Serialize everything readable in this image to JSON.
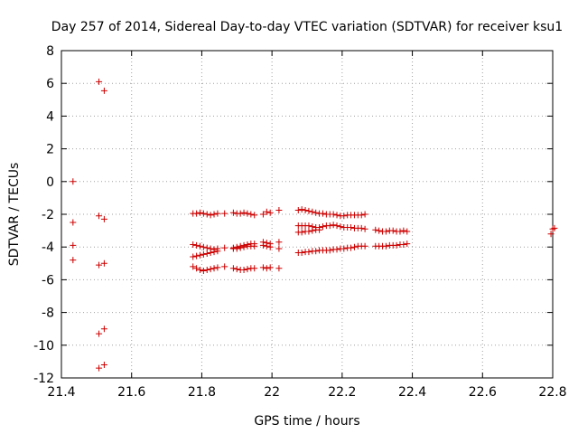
{
  "chart_data": {
    "type": "scatter",
    "title": "Day 257 of 2014, Sidereal Day-to-day VTEC variation (SDTVAR) for receiver ksu1",
    "xlabel": "GPS time / hours",
    "ylabel": "SDTVAR / TECUs",
    "xlim": [
      21.4,
      22.8
    ],
    "ylim": [
      -12,
      8
    ],
    "xticks": [
      21.4,
      21.6,
      21.8,
      22.0,
      22.2,
      22.4,
      22.6,
      22.8
    ],
    "xtick_labels": [
      "21.4",
      "21.6",
      "21.8",
      "22",
      "22.2",
      "22.4",
      "22.6",
      "22.8"
    ],
    "yticks": [
      -12,
      -10,
      -8,
      -6,
      -4,
      -2,
      0,
      2,
      4,
      6,
      8
    ],
    "ytick_labels": [
      "-12",
      "-10",
      "-8",
      "-6",
      "-4",
      "-2",
      "0",
      "2",
      "4",
      "6",
      "8"
    ],
    "grid": true,
    "marker": "+",
    "marker_color": "#cc0000",
    "series": [
      {
        "name": "SDTVAR",
        "points": [
          [
            21.433,
            0.0
          ],
          [
            21.433,
            -2.5
          ],
          [
            21.433,
            -3.9
          ],
          [
            21.433,
            -4.8
          ],
          [
            21.507,
            6.1
          ],
          [
            21.522,
            5.55
          ],
          [
            21.507,
            -2.1
          ],
          [
            21.522,
            -2.3
          ],
          [
            21.507,
            -5.1
          ],
          [
            21.522,
            -5.0
          ],
          [
            21.507,
            -9.3
          ],
          [
            21.522,
            -9.0
          ],
          [
            21.507,
            -11.4
          ],
          [
            21.522,
            -11.2
          ],
          [
            21.775,
            -1.95
          ],
          [
            21.785,
            -1.95
          ],
          [
            21.795,
            -1.9
          ],
          [
            21.805,
            -1.95
          ],
          [
            21.815,
            -2.0
          ],
          [
            21.825,
            -2.05
          ],
          [
            21.835,
            -2.0
          ],
          [
            21.845,
            -1.95
          ],
          [
            21.865,
            -1.95
          ],
          [
            21.89,
            -1.9
          ],
          [
            21.9,
            -1.95
          ],
          [
            21.91,
            -1.95
          ],
          [
            21.92,
            -1.9
          ],
          [
            21.93,
            -1.95
          ],
          [
            21.94,
            -2.0
          ],
          [
            21.95,
            -2.05
          ],
          [
            21.975,
            -2.0
          ],
          [
            21.985,
            -1.85
          ],
          [
            21.995,
            -1.9
          ],
          [
            22.02,
            -1.75
          ],
          [
            21.775,
            -3.85
          ],
          [
            21.785,
            -3.9
          ],
          [
            21.795,
            -3.95
          ],
          [
            21.805,
            -4.0
          ],
          [
            21.815,
            -4.05
          ],
          [
            21.825,
            -4.1
          ],
          [
            21.835,
            -4.15
          ],
          [
            21.845,
            -4.1
          ],
          [
            21.865,
            -4.05
          ],
          [
            21.89,
            -4.05
          ],
          [
            21.9,
            -4.0
          ],
          [
            21.91,
            -3.95
          ],
          [
            21.92,
            -3.9
          ],
          [
            21.93,
            -3.85
          ],
          [
            21.94,
            -3.8
          ],
          [
            21.95,
            -3.8
          ],
          [
            21.975,
            -3.7
          ],
          [
            21.985,
            -3.75
          ],
          [
            21.995,
            -3.8
          ],
          [
            22.02,
            -3.7
          ],
          [
            21.775,
            -4.6
          ],
          [
            21.785,
            -4.55
          ],
          [
            21.795,
            -4.5
          ],
          [
            21.805,
            -4.45
          ],
          [
            21.815,
            -4.4
          ],
          [
            21.825,
            -4.35
          ],
          [
            21.835,
            -4.3
          ],
          [
            21.845,
            -4.25
          ],
          [
            21.89,
            -4.1
          ],
          [
            21.9,
            -4.1
          ],
          [
            21.91,
            -4.05
          ],
          [
            21.92,
            -4.0
          ],
          [
            21.93,
            -3.95
          ],
          [
            21.94,
            -3.95
          ],
          [
            21.95,
            -3.95
          ],
          [
            21.975,
            -3.9
          ],
          [
            21.985,
            -3.95
          ],
          [
            21.995,
            -4.0
          ],
          [
            22.02,
            -4.1
          ],
          [
            21.775,
            -5.2
          ],
          [
            21.785,
            -5.3
          ],
          [
            21.795,
            -5.4
          ],
          [
            21.805,
            -5.45
          ],
          [
            21.815,
            -5.4
          ],
          [
            21.825,
            -5.35
          ],
          [
            21.835,
            -5.3
          ],
          [
            21.845,
            -5.25
          ],
          [
            21.865,
            -5.2
          ],
          [
            21.89,
            -5.3
          ],
          [
            21.9,
            -5.35
          ],
          [
            21.91,
            -5.4
          ],
          [
            21.92,
            -5.4
          ],
          [
            21.93,
            -5.35
          ],
          [
            21.94,
            -5.3
          ],
          [
            21.95,
            -5.3
          ],
          [
            21.975,
            -5.25
          ],
          [
            21.985,
            -5.3
          ],
          [
            21.995,
            -5.25
          ],
          [
            22.02,
            -5.3
          ],
          [
            22.075,
            -1.75
          ],
          [
            22.085,
            -1.7
          ],
          [
            22.095,
            -1.75
          ],
          [
            22.105,
            -1.8
          ],
          [
            22.115,
            -1.85
          ],
          [
            22.125,
            -1.9
          ],
          [
            22.135,
            -1.95
          ],
          [
            22.145,
            -1.95
          ],
          [
            22.155,
            -2.0
          ],
          [
            22.165,
            -2.0
          ],
          [
            22.175,
            -2.0
          ],
          [
            22.185,
            -2.05
          ],
          [
            22.195,
            -2.1
          ],
          [
            22.205,
            -2.1
          ],
          [
            22.215,
            -2.05
          ],
          [
            22.225,
            -2.05
          ],
          [
            22.235,
            -2.05
          ],
          [
            22.245,
            -2.05
          ],
          [
            22.255,
            -2.05
          ],
          [
            22.265,
            -2.0
          ],
          [
            22.075,
            -2.7
          ],
          [
            22.085,
            -2.7
          ],
          [
            22.095,
            -2.7
          ],
          [
            22.105,
            -2.7
          ],
          [
            22.115,
            -2.75
          ],
          [
            22.125,
            -2.8
          ],
          [
            22.135,
            -2.8
          ],
          [
            22.145,
            -2.75
          ],
          [
            22.155,
            -2.7
          ],
          [
            22.165,
            -2.7
          ],
          [
            22.175,
            -2.65
          ],
          [
            22.185,
            -2.7
          ],
          [
            22.195,
            -2.75
          ],
          [
            22.205,
            -2.8
          ],
          [
            22.215,
            -2.8
          ],
          [
            22.225,
            -2.8
          ],
          [
            22.235,
            -2.85
          ],
          [
            22.245,
            -2.85
          ],
          [
            22.255,
            -2.85
          ],
          [
            22.265,
            -2.9
          ],
          [
            22.295,
            -2.95
          ],
          [
            22.305,
            -3.0
          ],
          [
            22.315,
            -3.05
          ],
          [
            22.325,
            -3.05
          ],
          [
            22.335,
            -3.0
          ],
          [
            22.345,
            -3.0
          ],
          [
            22.355,
            -3.05
          ],
          [
            22.365,
            -3.05
          ],
          [
            22.375,
            -3.0
          ],
          [
            22.385,
            -3.05
          ],
          [
            22.075,
            -3.1
          ],
          [
            22.085,
            -3.1
          ],
          [
            22.095,
            -3.05
          ],
          [
            22.105,
            -3.05
          ],
          [
            22.115,
            -3.0
          ],
          [
            22.125,
            -2.95
          ],
          [
            22.135,
            -2.95
          ],
          [
            22.075,
            -4.35
          ],
          [
            22.085,
            -4.35
          ],
          [
            22.095,
            -4.3
          ],
          [
            22.105,
            -4.3
          ],
          [
            22.115,
            -4.25
          ],
          [
            22.125,
            -4.25
          ],
          [
            22.135,
            -4.2
          ],
          [
            22.145,
            -4.2
          ],
          [
            22.155,
            -4.2
          ],
          [
            22.165,
            -4.2
          ],
          [
            22.175,
            -4.15
          ],
          [
            22.185,
            -4.15
          ],
          [
            22.195,
            -4.1
          ],
          [
            22.205,
            -4.1
          ],
          [
            22.215,
            -4.05
          ],
          [
            22.225,
            -4.05
          ],
          [
            22.235,
            -4.0
          ],
          [
            22.245,
            -3.95
          ],
          [
            22.255,
            -3.95
          ],
          [
            22.265,
            -3.95
          ],
          [
            22.295,
            -3.95
          ],
          [
            22.305,
            -3.95
          ],
          [
            22.315,
            -3.95
          ],
          [
            22.325,
            -3.95
          ],
          [
            22.335,
            -3.9
          ],
          [
            22.345,
            -3.9
          ],
          [
            22.355,
            -3.9
          ],
          [
            22.365,
            -3.85
          ],
          [
            22.375,
            -3.85
          ],
          [
            22.385,
            -3.8
          ],
          [
            22.795,
            -3.2
          ],
          [
            22.8,
            -2.9
          ],
          [
            22.805,
            -2.85
          ]
        ]
      }
    ]
  }
}
